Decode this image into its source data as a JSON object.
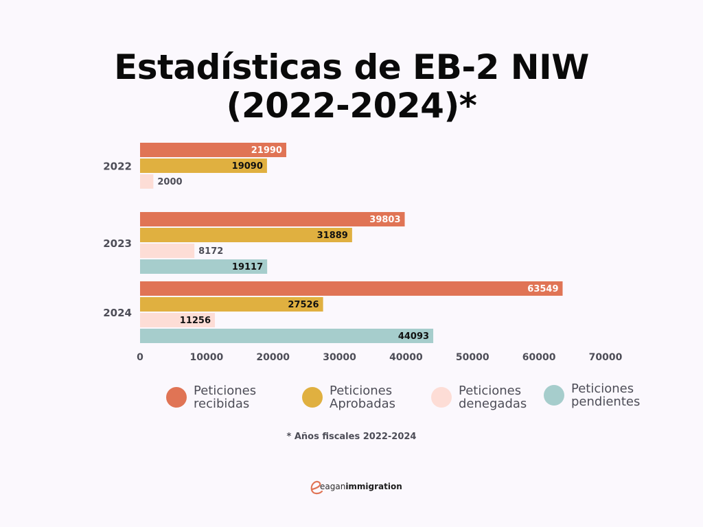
{
  "title_lines": [
    "Estadísticas de EB-2 NIW",
    "(2022-2024)*"
  ],
  "chart_data": {
    "type": "bar",
    "orientation": "horizontal",
    "title": "Estadísticas de EB-2 NIW (2022-2024)*",
    "categories": [
      "2022",
      "2023",
      "2024"
    ],
    "series": [
      {
        "name": "Peticiones recibidas",
        "color": "#e07455",
        "label_color": "#ffffff",
        "values": [
          21990,
          39803,
          63549
        ]
      },
      {
        "name": "Peticiones Aprobadas",
        "color": "#e0b040",
        "label_color": "#111111",
        "values": [
          19090,
          31889,
          27526
        ]
      },
      {
        "name": "Peticiones denegadas",
        "color": "#fdddd6",
        "label_color": "#111111",
        "values": [
          2000,
          8172,
          11256
        ]
      },
      {
        "name": "Peticiones pendientes",
        "color": "#a6cdcc",
        "label_color": "#111111",
        "values": [
          null,
          19117,
          44093
        ]
      }
    ],
    "x_ticks": [
      0,
      10000,
      20000,
      30000,
      40000,
      50000,
      60000,
      70000
    ],
    "xlim": [
      0,
      70000
    ],
    "grid": false,
    "legend_position": "bottom"
  },
  "legend": [
    {
      "line1": "Peticiones",
      "line2": "recibidas",
      "color": "#e07455"
    },
    {
      "line1": "Peticiones",
      "line2": "Aprobadas",
      "color": "#e0b040"
    },
    {
      "line1": "Peticiones",
      "line2": "denegadas",
      "color": "#fdddd6"
    },
    {
      "line1": "Peticiones",
      "line2": "pendientes",
      "color": "#a6cdcc"
    }
  ],
  "footnote": "* Años fiscales 2022-2024",
  "logo": {
    "part1": "eagan",
    "part2": "immigration",
    "mark_color": "#e07455"
  }
}
